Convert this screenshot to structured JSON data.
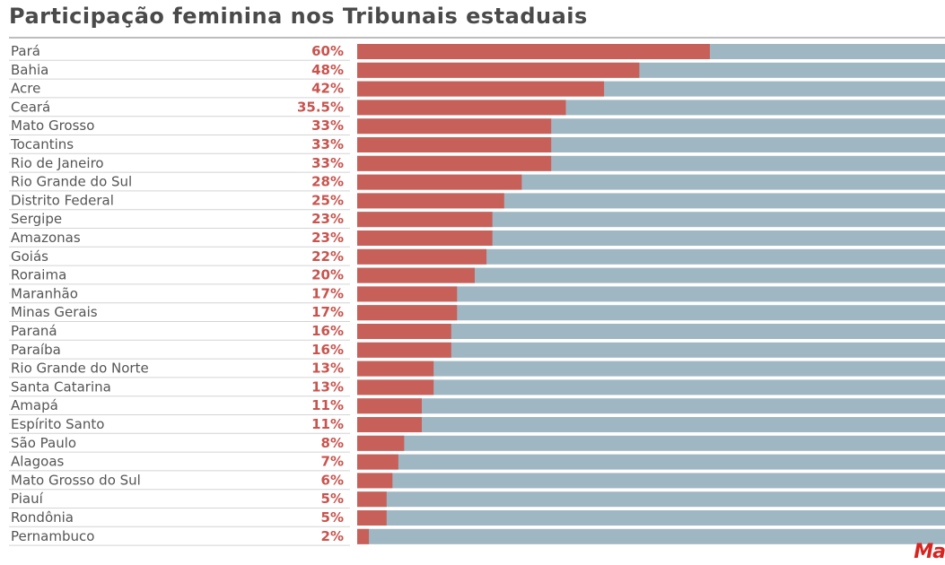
{
  "header": {
    "title": "Participação feminina nos Tribunais estaduais"
  },
  "logo": {
    "text": "Ma"
  },
  "colors": {
    "female": "#c8605a",
    "remainder": "#9fb7c3"
  },
  "chart_data": {
    "type": "bar",
    "orientation": "horizontal",
    "stacked": true,
    "title": "Participação feminina nos Tribunais estaduais",
    "xlim": [
      0,
      100
    ],
    "categories": [
      "Pará",
      "Bahia",
      "Acre",
      "Ceará",
      "Mato Grosso",
      "Tocantins",
      "Rio de Janeiro",
      "Rio Grande do Sul",
      "Distrito Federal",
      "Sergipe",
      "Amazonas",
      "Goiás",
      "Roraima",
      "Maranhão",
      "Minas Gerais",
      "Paraná",
      "Paraíba",
      "Rio Grande do Norte",
      "Santa Catarina",
      "Amapá",
      "Espírito Santo",
      "São Paulo",
      "Alagoas",
      "Mato Grosso do Sul",
      "Piauí",
      "Rondônia",
      "Pernambuco"
    ],
    "values": [
      60,
      48,
      42,
      35.5,
      33,
      33,
      33,
      28,
      25,
      23,
      23,
      22,
      20,
      17,
      17,
      16,
      16,
      13,
      13,
      11,
      11,
      8,
      7,
      6,
      5,
      5,
      2
    ],
    "value_labels": [
      "60%",
      "48%",
      "42%",
      "35.5%",
      "33%",
      "33%",
      "33%",
      "28%",
      "25%",
      "23%",
      "23%",
      "22%",
      "20%",
      "17%",
      "17%",
      "16%",
      "16%",
      "13%",
      "13%",
      "11%",
      "11%",
      "8%",
      "7%",
      "6%",
      "5%",
      "5%",
      "2%"
    ]
  }
}
